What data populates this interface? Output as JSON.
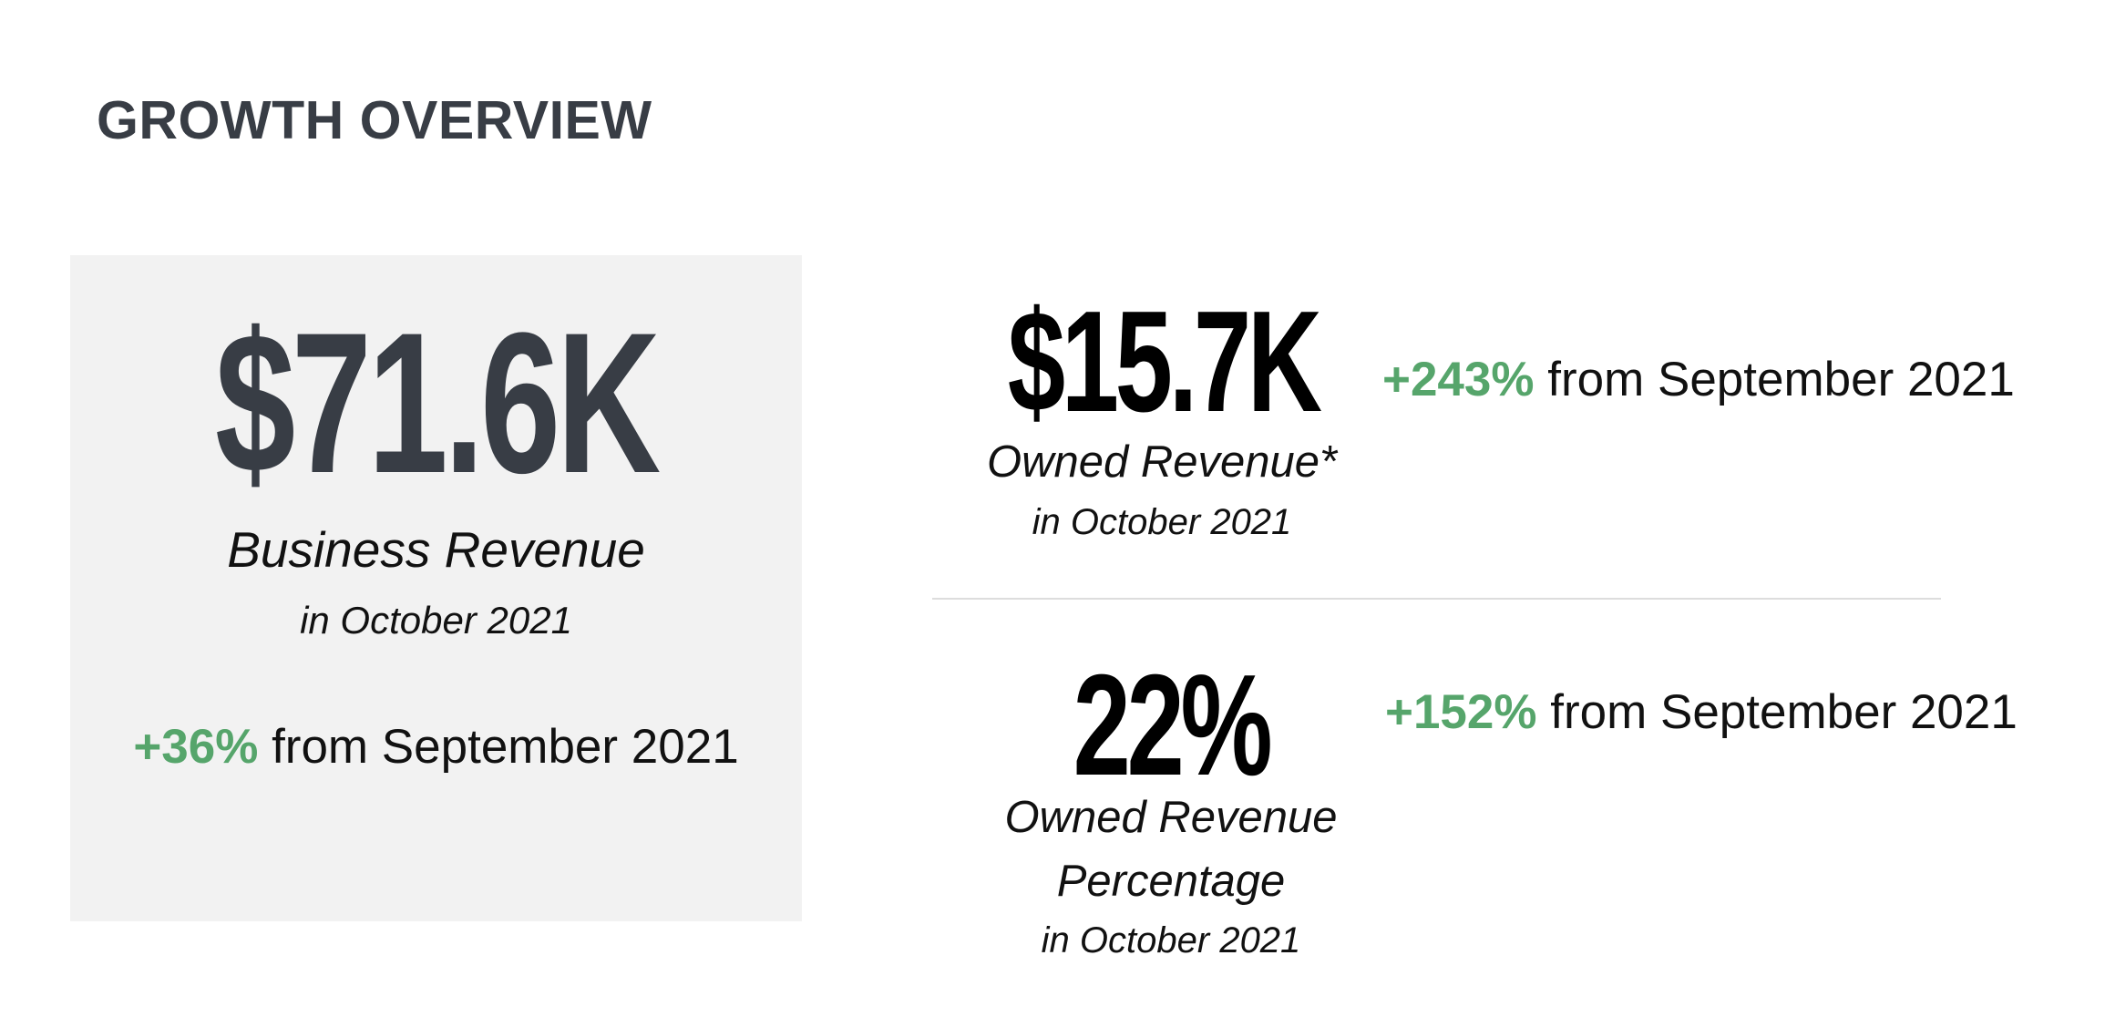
{
  "title": "GROWTH OVERVIEW",
  "business_revenue": {
    "value": "$71.6K",
    "label": "Business Revenue",
    "period": "in October 2021",
    "change_pct": "+36%",
    "change_text": " from September 2021"
  },
  "owned_revenue": {
    "value": "$15.7K",
    "label": "Owned Revenue*",
    "period": "in October 2021",
    "change_pct": "+243%",
    "change_text": " from September 2021"
  },
  "owned_revenue_percentage": {
    "value": "22%",
    "label_line1": "Owned Revenue",
    "label_line2": "Percentage",
    "period": "in October 2021",
    "change_pct": "+152%",
    "change_text": " from September 2021"
  },
  "colors": {
    "positive_change": "#56a56b",
    "card_background": "#f2f2f2",
    "heading": "#383d45"
  }
}
